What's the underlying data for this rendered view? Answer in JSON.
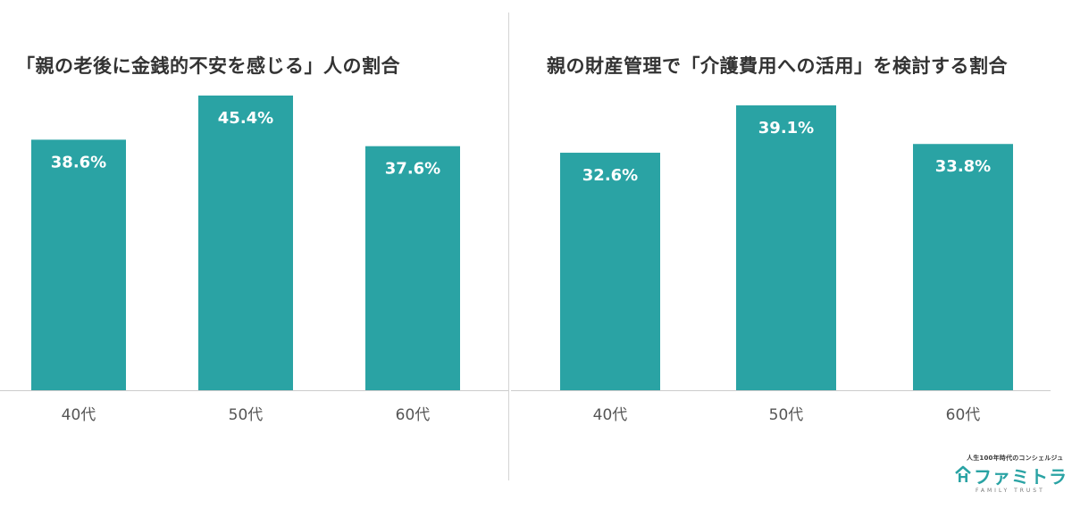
{
  "colors": {
    "bar": "#2aa3a4",
    "axis": "#cccccc",
    "text": "#333333"
  },
  "chart_data": [
    {
      "type": "bar",
      "title": "「親の老後に金銭的不安を感じる」人の割合",
      "categories": [
        "40代",
        "50代",
        "60代"
      ],
      "values": [
        38.6,
        45.4,
        37.6
      ],
      "value_labels": [
        "38.6%",
        "45.4%",
        "37.6%"
      ],
      "xlabel": "",
      "ylabel": "",
      "ylim": [
        0,
        45.4
      ],
      "grid": false,
      "legend": "none"
    },
    {
      "type": "bar",
      "title": "親の財産管理で「介護費用への活用」を検討する割合",
      "categories": [
        "40代",
        "50代",
        "60代"
      ],
      "values": [
        32.6,
        39.1,
        33.8
      ],
      "value_labels": [
        "32.6%",
        "39.1%",
        "33.8%"
      ],
      "xlabel": "",
      "ylabel": "",
      "ylim": [
        0,
        39.1
      ],
      "grid": false,
      "legend": "none"
    }
  ],
  "logo": {
    "tagline": "人生100年時代のコンシェルジュ",
    "icon": "house-icon",
    "name": "ファミトラ",
    "sub": "FAMILY TRUST"
  }
}
